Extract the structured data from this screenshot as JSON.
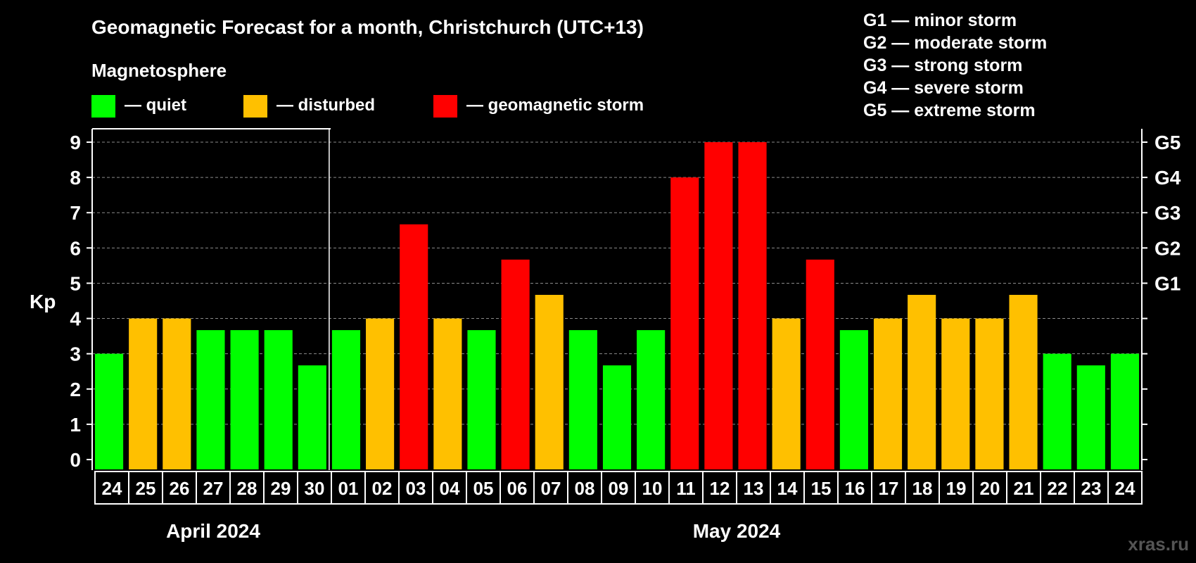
{
  "title": "Geomagnetic Forecast for a month, Christchurch (UTC+13)",
  "legend": {
    "heading": "Magnetosphere",
    "items": [
      {
        "label": "— quiet",
        "color": "#00ff00"
      },
      {
        "label": "— disturbed",
        "color": "#ffc000"
      },
      {
        "label": "— geomagnetic storm",
        "color": "#ff0000"
      }
    ]
  },
  "storm_scale": [
    "G1 — minor storm",
    "G2 — moderate storm",
    "G3 — strong storm",
    "G4 — severe storm",
    "G5 — extreme storm"
  ],
  "watermark": "xras.ru",
  "chart_data": {
    "type": "bar",
    "ylabel": "Kp",
    "ylim": [
      0,
      9
    ],
    "yticks": [
      "0",
      "1",
      "2",
      "3",
      "4",
      "5",
      "6",
      "7",
      "8",
      "9"
    ],
    "right_axis_labels": [
      {
        "kp": 5,
        "label": "G1"
      },
      {
        "kp": 6,
        "label": "G2"
      },
      {
        "kp": 7,
        "label": "G3"
      },
      {
        "kp": 8,
        "label": "G4"
      },
      {
        "kp": 9,
        "label": "G5"
      }
    ],
    "grid": true,
    "categories": [
      "24",
      "25",
      "26",
      "27",
      "28",
      "29",
      "30",
      "01",
      "02",
      "03",
      "04",
      "05",
      "06",
      "07",
      "08",
      "09",
      "10",
      "11",
      "12",
      "13",
      "14",
      "15",
      "16",
      "17",
      "18",
      "19",
      "20",
      "21",
      "22",
      "23",
      "24"
    ],
    "values": [
      3.0,
      4.0,
      4.0,
      3.67,
      3.67,
      3.67,
      2.67,
      3.67,
      4.0,
      6.67,
      4.0,
      3.67,
      5.67,
      4.67,
      3.67,
      2.67,
      3.67,
      8.0,
      9.0,
      9.0,
      4.0,
      5.67,
      3.67,
      4.0,
      4.67,
      4.0,
      4.0,
      4.67,
      3.0,
      2.67,
      3.0
    ],
    "levels": [
      "quiet",
      "disturbed",
      "disturbed",
      "quiet",
      "quiet",
      "quiet",
      "quiet",
      "quiet",
      "disturbed",
      "storm",
      "disturbed",
      "quiet",
      "storm",
      "disturbed",
      "quiet",
      "quiet",
      "quiet",
      "storm",
      "storm",
      "storm",
      "disturbed",
      "storm",
      "quiet",
      "disturbed",
      "disturbed",
      "disturbed",
      "disturbed",
      "disturbed",
      "quiet",
      "quiet",
      "quiet"
    ],
    "level_colors": {
      "quiet": "#00ff00",
      "disturbed": "#ffc000",
      "storm": "#ff0000"
    },
    "months": [
      {
        "label": "April 2024",
        "first_index": 0,
        "last_index": 6
      },
      {
        "label": "May 2024",
        "first_index": 7,
        "last_index": 30
      }
    ]
  }
}
